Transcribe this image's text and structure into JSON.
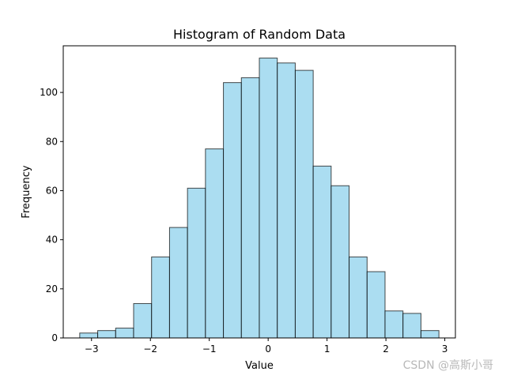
{
  "chart_data": {
    "type": "bar",
    "title": "Histogram of Random Data",
    "xlabel": "Value",
    "ylabel": "Frequency",
    "xlim": [
      -3.48,
      3.18
    ],
    "ylim": [
      0,
      119
    ],
    "xticks": [
      -3,
      -2,
      -1,
      0,
      1,
      2,
      3
    ],
    "yticks": [
      0,
      20,
      40,
      60,
      80,
      100
    ],
    "bin_edges": [
      -3.2,
      -2.895,
      -2.59,
      -2.285,
      -1.98,
      -1.675,
      -1.37,
      -1.065,
      -0.76,
      -0.455,
      -0.15,
      0.155,
      0.46,
      0.765,
      1.07,
      1.375,
      1.68,
      1.985,
      2.29,
      2.595,
      2.9
    ],
    "values": [
      2,
      3,
      4,
      14,
      33,
      45,
      61,
      77,
      104,
      106,
      114,
      112,
      109,
      70,
      62,
      33,
      27,
      11,
      10,
      3
    ],
    "bar_color": "#87ceeb",
    "bar_opacity": 0.7,
    "edge_color": "#000000",
    "grid": false,
    "legend": "none"
  },
  "watermark": "CSDN @高斯小哥"
}
